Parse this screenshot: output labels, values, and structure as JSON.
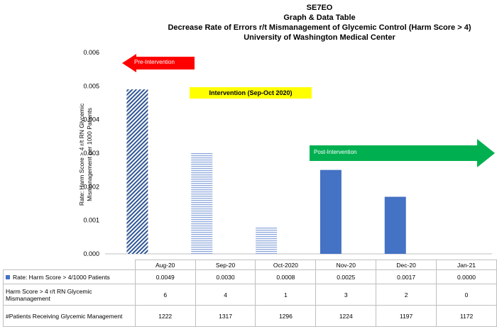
{
  "titles": {
    "line1": "SE7EO",
    "line2": "Graph & Data Table",
    "line3": "Decrease Rate of Errors r/t Mismanagement of Glycemic Control (Harm Score > 4)",
    "line4": "University of Washington Medical Center"
  },
  "annotations": {
    "pre": "Pre-Intervention",
    "intervention": "Intervention (Sep-Oct 2020)",
    "post": "Post-Intervention",
    "pre_color": "#ff0000",
    "intervention_color": "#ffff00",
    "post_color": "#00b050"
  },
  "chart_data": {
    "type": "bar",
    "categories": [
      "Aug-20",
      "Sep-20",
      "Oct-2020",
      "Nov-20",
      "Dec-20",
      "Jan-21"
    ],
    "values": [
      0.0049,
      0.003,
      0.0008,
      0.0025,
      0.0017,
      0.0
    ],
    "ylabel": "Rate: Harm Score > 4 r/t RN Glycemic Mismanagement per 1000 Patients",
    "ylim": [
      0,
      0.006
    ],
    "yticks": [
      "0.000",
      "0.001",
      "0.002",
      "0.003",
      "0.004",
      "0.005",
      "0.006"
    ],
    "bar_styles": [
      "diagonal-hatch",
      "horizontal-hatch",
      "horizontal-hatch",
      "solid",
      "solid",
      "solid"
    ],
    "bar_color": "#4472c4",
    "grid": false
  },
  "table": {
    "rows": [
      {
        "label": "Rate: Harm Score > 4/1000 Patients",
        "values": [
          "0.0049",
          "0.0030",
          "0.0008",
          "0.0025",
          "0.0017",
          "0.0000"
        ]
      },
      {
        "label": "Harm Score > 4 r/t RN Glycemic Mismanagement",
        "values": [
          "6",
          "4",
          "1",
          "3",
          "2",
          "0"
        ]
      },
      {
        "label": "#Patients Receiving Glycemic Management",
        "values": [
          "1222",
          "1317",
          "1296",
          "1224",
          "1197",
          "1172"
        ]
      }
    ]
  }
}
